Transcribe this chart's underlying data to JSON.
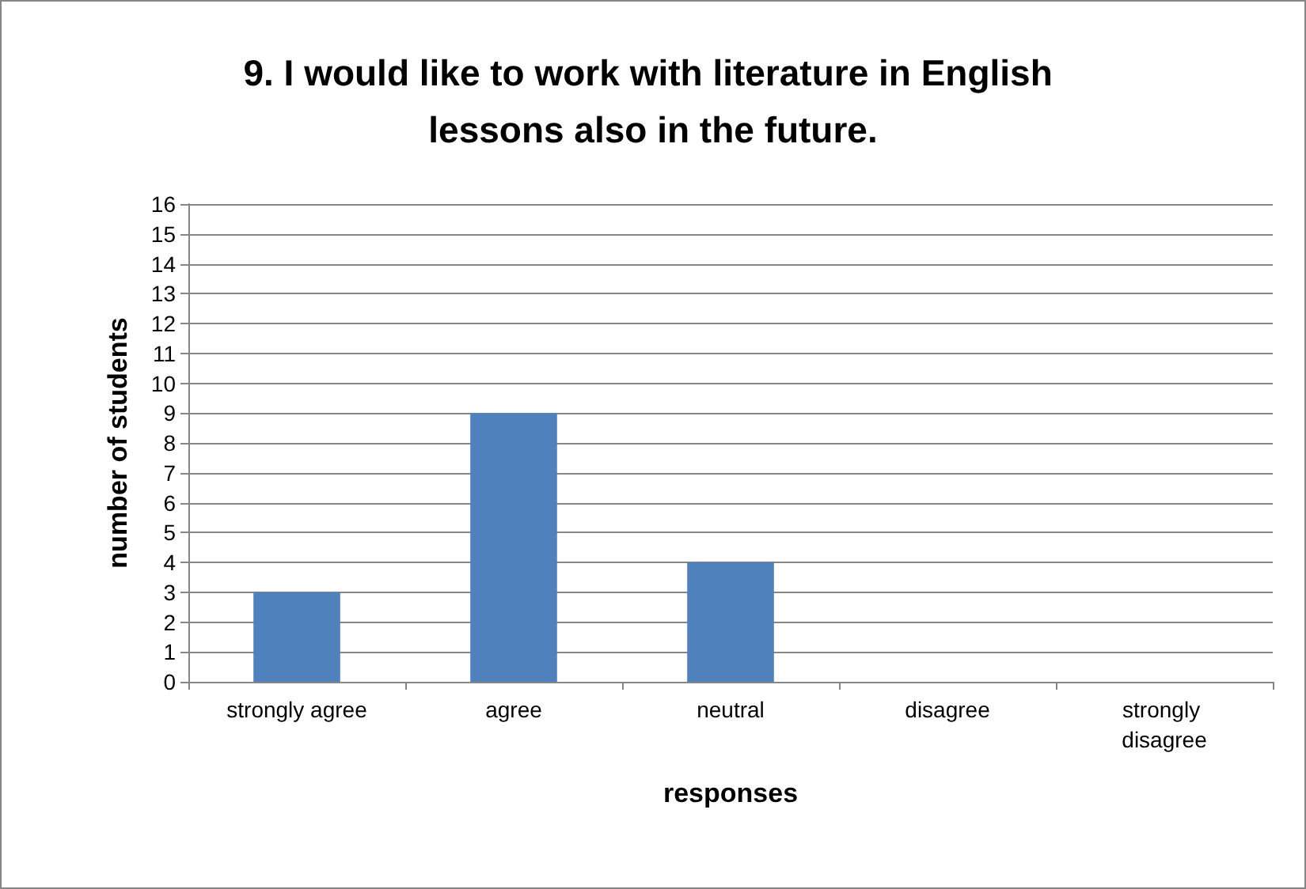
{
  "chart_data": {
    "type": "bar",
    "title": "9. I would like to work with literature in English lessons also in the future.",
    "xlabel": "responses",
    "ylabel": "number of students",
    "categories": [
      "strongly agree",
      "agree",
      "neutral",
      "disagree",
      "strongly disagree"
    ],
    "values": [
      3,
      9,
      4,
      0,
      0
    ],
    "color": "#4f81bd",
    "ylim": [
      0,
      16
    ],
    "yticks": [
      0,
      1,
      2,
      3,
      4,
      5,
      6,
      7,
      8,
      9,
      10,
      11,
      12,
      13,
      14,
      15,
      16
    ],
    "grid": "y"
  }
}
